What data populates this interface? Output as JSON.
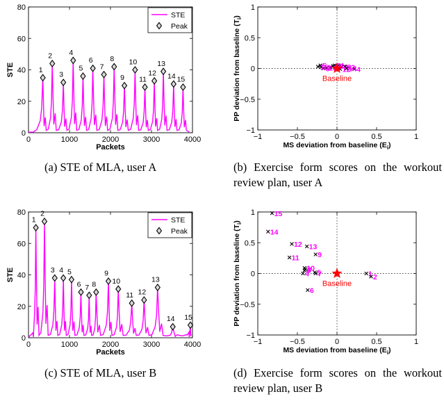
{
  "chart_data": [
    {
      "id": "a",
      "type": "line",
      "caption": "(a) STE of MLA, user A",
      "xlabel": "Packets",
      "ylabel": "STE",
      "xlim": [
        0,
        4000
      ],
      "ylim": [
        0,
        80
      ],
      "xticks": [
        "0",
        "1000",
        "2000",
        "3000",
        "4000"
      ],
      "yticks": [
        "0",
        "20",
        "40",
        "60",
        "80"
      ],
      "legend": {
        "position": "top-right",
        "entries": [
          "STE",
          "Peak"
        ]
      },
      "series_color": "#ff00ff",
      "peaks": [
        {
          "label": "1",
          "x": 350,
          "y": 35
        },
        {
          "label": "2",
          "x": 580,
          "y": 44
        },
        {
          "label": "3",
          "x": 850,
          "y": 32
        },
        {
          "label": "4",
          "x": 1090,
          "y": 46
        },
        {
          "label": "5",
          "x": 1330,
          "y": 36
        },
        {
          "label": "6",
          "x": 1570,
          "y": 41
        },
        {
          "label": "7",
          "x": 1840,
          "y": 37
        },
        {
          "label": "8",
          "x": 2090,
          "y": 42
        },
        {
          "label": "9",
          "x": 2340,
          "y": 30
        },
        {
          "label": "10",
          "x": 2600,
          "y": 40
        },
        {
          "label": "11",
          "x": 2840,
          "y": 29
        },
        {
          "label": "12",
          "x": 3070,
          "y": 33
        },
        {
          "label": "13",
          "x": 3290,
          "y": 39
        },
        {
          "label": "14",
          "x": 3540,
          "y": 31
        },
        {
          "label": "15",
          "x": 3770,
          "y": 29
        }
      ]
    },
    {
      "id": "b",
      "type": "scatter",
      "caption": "(b) Exercise form scores on the workout review plan, user A",
      "xlabel": "MS deviation from baseline (E",
      "xlabel_sub": "i",
      "ylabel": "PP deviation from baseline (T",
      "ylabel_sub": "i",
      "xlim": [
        -1,
        1
      ],
      "ylim": [
        -1,
        1
      ],
      "xticks": [
        "−1",
        "−0.5",
        "0",
        "0.5",
        "1"
      ],
      "yticks": [
        "−1",
        "−0.5",
        "0",
        "0.5",
        "1"
      ],
      "baseline_label": "Baseline",
      "baseline_color": "#ff0000",
      "label_color": "#ff00ff",
      "points": [
        {
          "label": "1",
          "x": 0.02,
          "y": 0.05
        },
        {
          "label": "2",
          "x": 0.15,
          "y": 0.02
        },
        {
          "label": "3",
          "x": 0.06,
          "y": 0.03
        },
        {
          "label": "4",
          "x": 0.22,
          "y": -0.01
        },
        {
          "label": "5",
          "x": -0.21,
          "y": 0.05
        },
        {
          "label": "6",
          "x": -0.17,
          "y": 0.0
        },
        {
          "label": "7",
          "x": -0.08,
          "y": 0.02
        },
        {
          "label": "8",
          "x": 0.1,
          "y": 0.03
        },
        {
          "label": "9",
          "x": -0.03,
          "y": 0.05
        },
        {
          "label": "10",
          "x": -0.13,
          "y": 0.01
        },
        {
          "label": "11",
          "x": -0.2,
          "y": 0.02
        },
        {
          "label": "12",
          "x": 0.04,
          "y": -0.01
        },
        {
          "label": "13",
          "x": -0.05,
          "y": 0.04
        },
        {
          "label": "14",
          "x": 0.12,
          "y": 0.0
        },
        {
          "label": "15",
          "x": -0.24,
          "y": 0.03
        }
      ]
    },
    {
      "id": "c",
      "type": "line",
      "caption": "(c) STE of MLA, user B",
      "xlabel": "Packets",
      "ylabel": "STE",
      "xlim": [
        0,
        4000
      ],
      "ylim": [
        0,
        80
      ],
      "xticks": [
        "0",
        "1000",
        "2000",
        "3000",
        "4000"
      ],
      "yticks": [
        "0",
        "20",
        "40",
        "60",
        "80"
      ],
      "legend": {
        "position": "top-right",
        "entries": [
          "STE",
          "Peak"
        ]
      },
      "series_color": "#ff00ff",
      "peaks": [
        {
          "label": "1",
          "x": 180,
          "y": 70
        },
        {
          "label": "2",
          "x": 390,
          "y": 74
        },
        {
          "label": "3",
          "x": 640,
          "y": 38
        },
        {
          "label": "4",
          "x": 850,
          "y": 38
        },
        {
          "label": "5",
          "x": 1050,
          "y": 37
        },
        {
          "label": "6",
          "x": 1280,
          "y": 29
        },
        {
          "label": "7",
          "x": 1480,
          "y": 27
        },
        {
          "label": "8",
          "x": 1650,
          "y": 29
        },
        {
          "label": "9",
          "x": 1950,
          "y": 36
        },
        {
          "label": "10",
          "x": 2190,
          "y": 31
        },
        {
          "label": "11",
          "x": 2520,
          "y": 22
        },
        {
          "label": "12",
          "x": 2820,
          "y": 24
        },
        {
          "label": "13",
          "x": 3150,
          "y": 32
        },
        {
          "label": "14",
          "x": 3520,
          "y": 7
        },
        {
          "label": "15",
          "x": 3950,
          "y": 8
        }
      ]
    },
    {
      "id": "d",
      "type": "scatter",
      "caption": "(d) Exercise form scores on the workout review plan, user B",
      "xlabel": "MS deviation from baseline (E",
      "xlabel_sub": "i",
      "ylabel": "PP deviation from baseline (T",
      "ylabel_sub": "i",
      "xlim": [
        -1,
        1
      ],
      "ylim": [
        -1,
        1
      ],
      "xticks": [
        "−1",
        "−0.5",
        "0",
        "0.5",
        "1"
      ],
      "yticks": [
        "−1",
        "−0.5",
        "0",
        "0.5",
        "1"
      ],
      "baseline_label": "Baseline",
      "baseline_color": "#ff0000",
      "label_color": "#ff00ff",
      "points": [
        {
          "label": "1",
          "x": 0.37,
          "y": 0.0
        },
        {
          "label": "2",
          "x": 0.43,
          "y": -0.05
        },
        {
          "label": "3",
          "x": -0.4,
          "y": 0.07
        },
        {
          "label": "4",
          "x": -0.43,
          "y": 0.0
        },
        {
          "label": "5",
          "x": -0.28,
          "y": 0.02
        },
        {
          "label": "6",
          "x": -0.37,
          "y": -0.27
        },
        {
          "label": "7",
          "x": -0.27,
          "y": 0.0
        },
        {
          "label": "8",
          "x": -0.41,
          "y": 0.05
        },
        {
          "label": "9",
          "x": -0.27,
          "y": 0.31
        },
        {
          "label": "10",
          "x": -0.41,
          "y": 0.09
        },
        {
          "label": "11",
          "x": -0.6,
          "y": 0.26
        },
        {
          "label": "12",
          "x": -0.57,
          "y": 0.48
        },
        {
          "label": "13",
          "x": -0.38,
          "y": 0.44
        },
        {
          "label": "14",
          "x": -0.87,
          "y": 0.68
        },
        {
          "label": "15",
          "x": -0.82,
          "y": 0.98
        }
      ]
    }
  ]
}
